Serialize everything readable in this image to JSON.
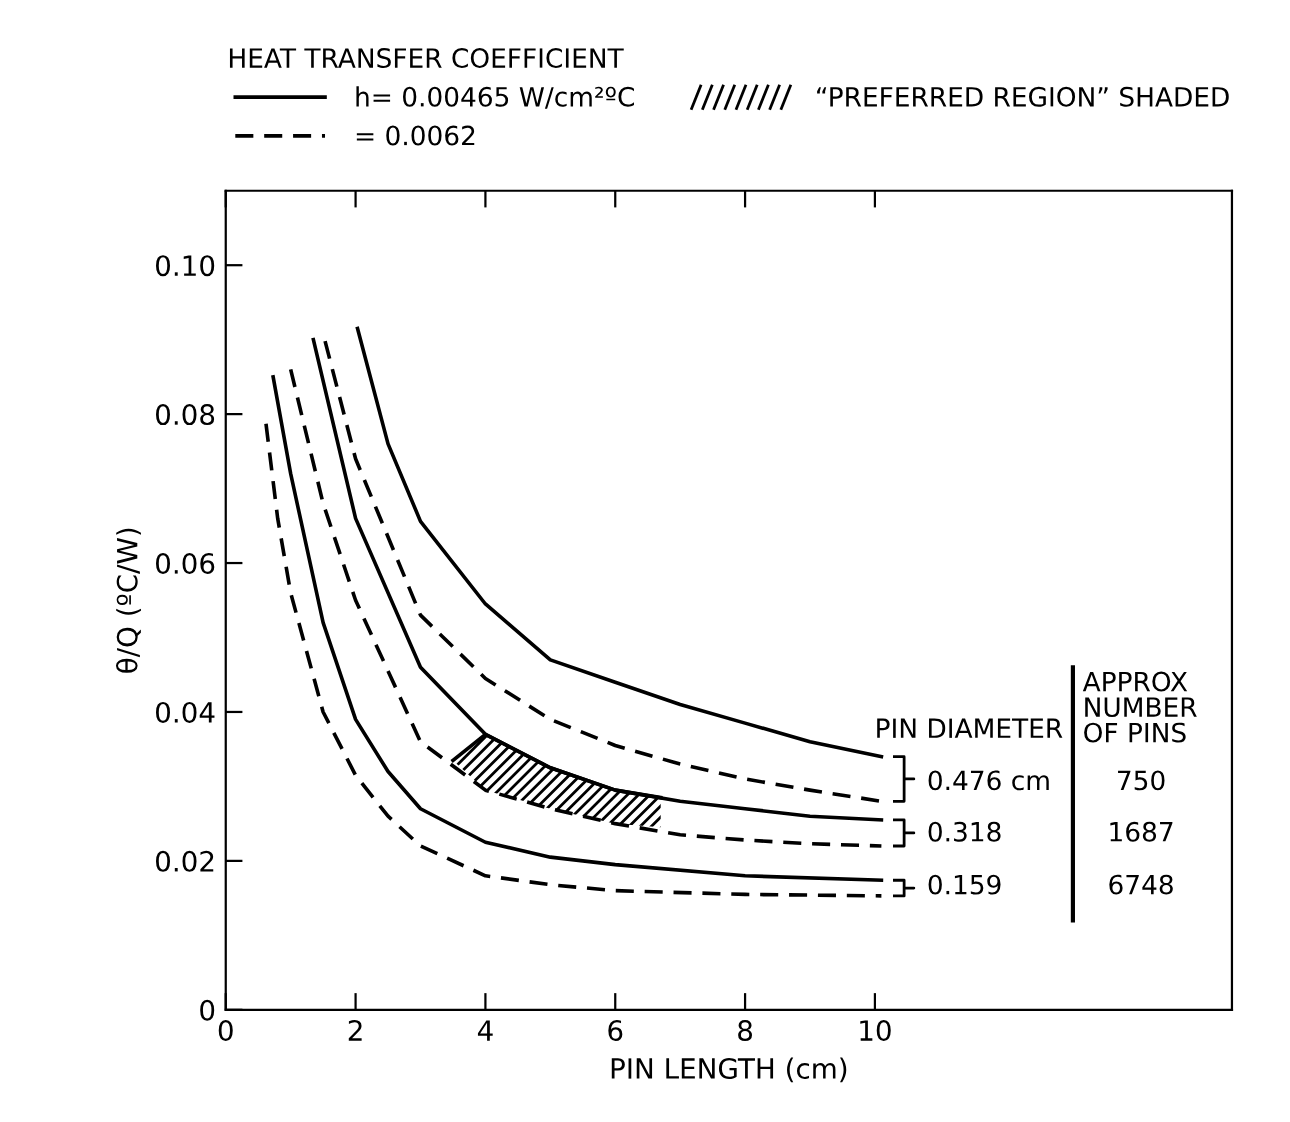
{
  "chart_data": {
    "type": "line",
    "xlabel": "PIN LENGTH (cm)",
    "ylabel": "θ/Q (ºC/W)",
    "legend_title": "HEAT TRANSFER COEFFICIENT",
    "xlim": [
      0,
      15.5
    ],
    "ylim": [
      0,
      0.11
    ],
    "xticks": [
      0,
      2,
      4,
      6,
      8,
      10
    ],
    "yticks": [
      0,
      {
        "value": 0.02,
        "label": "0.02"
      },
      {
        "value": 0.04,
        "label": "0.04"
      },
      {
        "value": 0.06,
        "label": "0.06"
      },
      {
        "value": 0.08,
        "label": "0.08"
      },
      {
        "value": 0.1,
        "label": "0.10"
      }
    ],
    "grid": false,
    "legend": "top",
    "marker": "none",
    "series": [
      {
        "name": "h= 0.00465 W/cm²ºC",
        "color": "#000000",
        "line_style": "solid",
        "x": [
          2.03,
          2.5,
          3,
          4,
          5,
          6,
          7,
          8,
          9,
          10.1
        ],
        "values": [
          0.0915,
          0.076,
          0.0656,
          0.0545,
          0.047,
          0.044,
          0.041,
          0.0385,
          0.036,
          0.034
        ]
      },
      {
        "name": "= 0.0062",
        "color": "#000000",
        "line_style": "dashed",
        "x": [
          1.53,
          2,
          3,
          4,
          5,
          6,
          7,
          8,
          9,
          10.1
        ],
        "values": [
          0.0898,
          0.074,
          0.053,
          0.0445,
          0.039,
          0.0355,
          0.033,
          0.031,
          0.0295,
          0.028
        ]
      },
      {
        "color": "#000000",
        "line_style": "solid",
        "x": [
          1.35,
          2,
          3,
          4,
          5,
          6,
          7,
          8,
          9,
          10.1
        ],
        "values": [
          0.09,
          0.066,
          0.046,
          0.037,
          0.0325,
          0.0295,
          0.028,
          0.027,
          0.026,
          0.0255
        ]
      },
      {
        "color": "#000000",
        "line_style": "dashed",
        "x": [
          1.0,
          1.5,
          2,
          3,
          4,
          5,
          6,
          7,
          8,
          9,
          10.1
        ],
        "values": [
          0.086,
          0.068,
          0.055,
          0.036,
          0.0295,
          0.027,
          0.025,
          0.0235,
          0.0228,
          0.0223,
          0.022
        ]
      },
      {
        "color": "#000000",
        "line_style": "solid",
        "x": [
          0.73,
          1,
          1.5,
          2,
          2.5,
          3,
          4,
          5,
          6,
          8,
          10.1
        ],
        "values": [
          0.085,
          0.072,
          0.052,
          0.039,
          0.032,
          0.027,
          0.0225,
          0.0205,
          0.0195,
          0.018,
          0.0174
        ]
      },
      {
        "color": "#000000",
        "line_style": "dashed",
        "x": [
          0.62,
          0.8,
          1,
          1.5,
          2,
          2.5,
          3,
          4,
          5,
          6,
          8,
          10.1
        ],
        "values": [
          0.0787,
          0.066,
          0.056,
          0.04,
          0.0315,
          0.026,
          0.022,
          0.018,
          0.0168,
          0.016,
          0.0155,
          0.0153
        ]
      },
      {
        "name": "“PREFERRED REGION” SHADED",
        "color": "#000000",
        "line_style": "solid",
        "x": [
          3.5,
          4,
          5,
          6,
          6.7
        ],
        "values": [
          0.0335,
          0.037,
          0.0325,
          0.0295,
          0.0285
        ],
        "lower": [
          0.0335,
          0.0295,
          0.027,
          0.025,
          0.0245
        ],
        "upper": [
          0.0335,
          0.037,
          0.0325,
          0.0295,
          0.0285
        ]
      }
    ],
    "annotations": [
      "PIN DIAMETER",
      "APPROX\nNUMBER\nOF PINS",
      "0.476 cm",
      "0.318",
      "0.159",
      "750",
      "1687",
      "6748"
    ]
  }
}
